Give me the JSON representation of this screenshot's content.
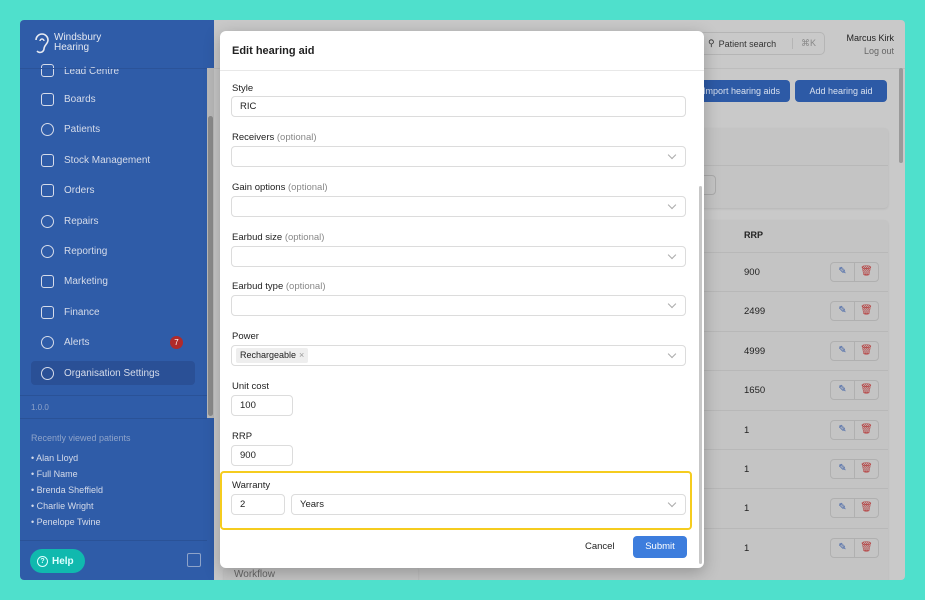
{
  "sidebar": {
    "brand": "Windsbury Hearing",
    "brand_line1": "Windsbury",
    "brand_line2": "Hearing",
    "items": [
      {
        "label": "Lead Centre",
        "icon": "lead-icon"
      },
      {
        "label": "Boards",
        "icon": "board-icon"
      },
      {
        "label": "Patients",
        "icon": "smile-icon"
      },
      {
        "label": "Stock Management",
        "icon": "clipboard-icon"
      },
      {
        "label": "Orders",
        "icon": "bag-icon"
      },
      {
        "label": "Repairs",
        "icon": "wrench-icon"
      },
      {
        "label": "Reporting",
        "icon": "pie-chart-icon"
      },
      {
        "label": "Marketing",
        "icon": "mail-icon"
      },
      {
        "label": "Finance",
        "icon": "credit-card-icon"
      },
      {
        "label": "Alerts",
        "icon": "bell-icon",
        "badge": "7"
      },
      {
        "label": "Organisation Settings",
        "icon": "gear-icon",
        "active": true
      }
    ],
    "version": "1.0.0",
    "recent_title": "Recently viewed patients",
    "recent": [
      "Alan Lloyd",
      "Full Name",
      "Brenda Sheffield",
      "Charlie Wright",
      "Penelope Twine"
    ],
    "help": "Help"
  },
  "header": {
    "search": "Patient search",
    "shortcut": "⌘K",
    "user": "Marcus Kirk",
    "logout": "Log out"
  },
  "toolbar": {
    "import": "Import hearing aids",
    "import_visible": "port hearing aids",
    "add": "Add hearing aid"
  },
  "table": {
    "rrp_header": "RRP",
    "rrp": [
      "900",
      "2499",
      "4999",
      "1650",
      "1",
      "1",
      "1",
      "1"
    ]
  },
  "bg_partial": "Workflow",
  "modal": {
    "title": "Edit hearing aid",
    "style": {
      "label": "Style",
      "value": "RIC"
    },
    "receivers": {
      "label": "Receivers",
      "optional": "(optional)"
    },
    "gain": {
      "label": "Gain options",
      "optional": "(optional)"
    },
    "earbud_size": {
      "label": "Earbud size",
      "optional": "(optional)"
    },
    "earbud_type": {
      "label": "Earbud type",
      "optional": "(optional)"
    },
    "power": {
      "label": "Power",
      "chip": "Rechargeable"
    },
    "unit_cost": {
      "label": "Unit cost",
      "value": "100"
    },
    "rrp": {
      "label": "RRP",
      "value": "900"
    },
    "warranty": {
      "label": "Warranty",
      "value": "2",
      "unit": "Years"
    },
    "cancel": "Cancel",
    "submit": "Submit"
  },
  "colors": {
    "sidebar": "#2f5ca8",
    "accent": "#3d7ddd",
    "highlight": "#f5cc1f",
    "frame": "#4fe0cc"
  }
}
